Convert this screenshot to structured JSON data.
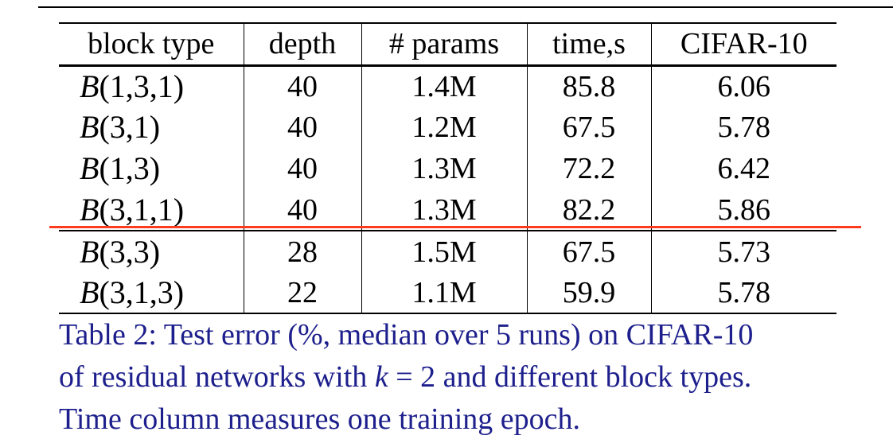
{
  "table": {
    "headers": [
      "block type",
      "depth",
      "# params",
      "time,s",
      "CIFAR-10"
    ],
    "rows": [
      {
        "block_letter": "B",
        "block_args": "(1,3,1)",
        "depth": "40",
        "params": "1.4M",
        "time": "85.8",
        "error": "6.06"
      },
      {
        "block_letter": "B",
        "block_args": "(3,1)",
        "depth": "40",
        "params": "1.2M",
        "time": "67.5",
        "error": "5.78"
      },
      {
        "block_letter": "B",
        "block_args": "(1,3)",
        "depth": "40",
        "params": "1.3M",
        "time": "72.2",
        "error": "6.42"
      },
      {
        "block_letter": "B",
        "block_args": "(3,1,1)",
        "depth": "40",
        "params": "1.3M",
        "time": "82.2",
        "error": "5.86"
      },
      {
        "block_letter": "B",
        "block_args": "(3,3)",
        "depth": "28",
        "params": "1.5M",
        "time": "67.5",
        "error": "5.73"
      },
      {
        "block_letter": "B",
        "block_args": "(3,1,3)",
        "depth": "22",
        "params": "1.1M",
        "time": "59.9",
        "error": "5.78"
      }
    ]
  },
  "caption": {
    "line1": "Table 2: Test error (%, median over 5 runs) on CIFAR-10",
    "line2_before": "of residual networks with ",
    "line2_math": "k",
    "line2_equals": " = 2",
    "line2_after": " and different block types.",
    "line3": "Time column measures one training epoch."
  },
  "colors": {
    "caption_text": "#1d1f8c",
    "annotation_mark": "#ff3b1f"
  }
}
